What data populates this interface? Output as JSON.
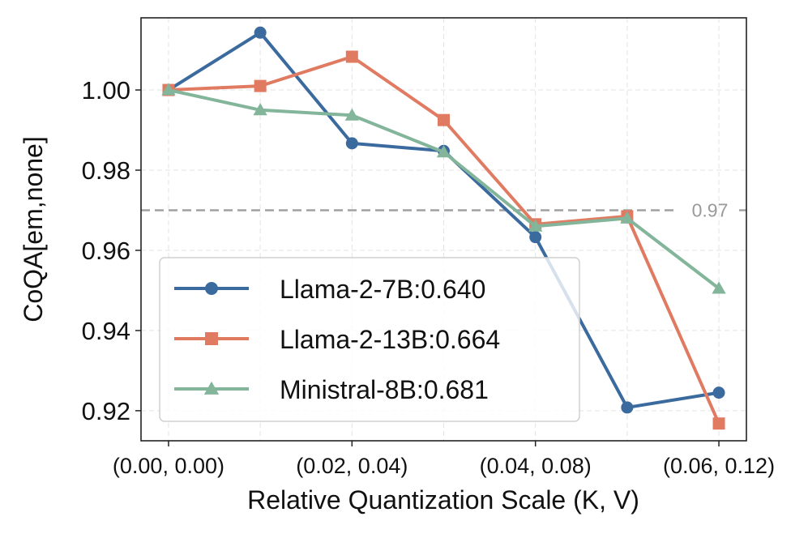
{
  "chart_data": {
    "type": "line",
    "title": "",
    "xlabel": "Relative Quantization Scale (K, V)",
    "ylabel": "CoQA[em,none]",
    "x": [
      0,
      1,
      2,
      3,
      4,
      5,
      6
    ],
    "xticks": [
      0,
      2,
      4,
      6
    ],
    "xtick_labels": [
      "(0.00, 0.00)",
      "(0.02, 0.04)",
      "(0.04, 0.08)",
      "(0.06, 0.12)"
    ],
    "xlim": [
      -0.3,
      6.3
    ],
    "ylim": [
      0.9125,
      1.018
    ],
    "yticks": [
      0.92,
      0.94,
      0.96,
      0.98,
      1.0
    ],
    "ytick_labels": [
      "0.92",
      "0.94",
      "0.96",
      "0.98",
      "1.00"
    ],
    "grid": true,
    "reference_line": {
      "y": 0.97,
      "label": "0.97",
      "color": "#a0a0a0"
    },
    "legend_position": "lower-left",
    "series": [
      {
        "name": "Llama-2-7B:0.640",
        "color": "#3b6a9e",
        "marker": "circle",
        "values": [
          1.0,
          1.0143,
          0.9867,
          0.9848,
          0.9633,
          0.9208,
          0.9245
        ]
      },
      {
        "name": "Llama-2-13B:0.664",
        "color": "#e07b62",
        "marker": "square",
        "values": [
          1.0,
          1.001,
          1.0083,
          0.9925,
          0.9665,
          0.9685,
          0.9168
        ]
      },
      {
        "name": "Ministral-8B:0.681",
        "color": "#82b59a",
        "marker": "triangle",
        "values": [
          1.0,
          0.995,
          0.9937,
          0.9845,
          0.966,
          0.968,
          0.9505
        ]
      }
    ]
  }
}
